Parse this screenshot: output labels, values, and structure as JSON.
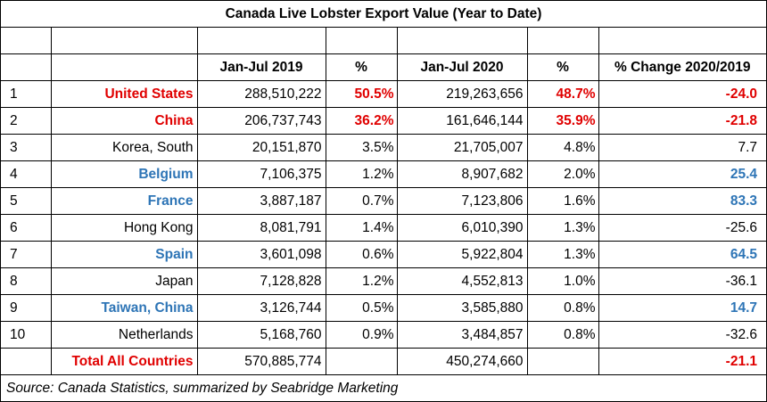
{
  "title": "Canada Live Lobster Export Value (Year to Date)",
  "headers": {
    "rank": "",
    "country": "",
    "val2019": "Jan-Jul 2019",
    "pct2019": "%",
    "val2020": "Jan-Jul 2020",
    "pct2020": "%",
    "change": "% Change 2020/2019"
  },
  "rows": [
    {
      "rank": "1",
      "country": "United States",
      "val2019": "288,510,222",
      "pct2019": "50.5%",
      "val2020": "219,263,656",
      "pct2020": "48.7%",
      "change": "-24.0",
      "color": "red"
    },
    {
      "rank": "2",
      "country": "China",
      "val2019": "206,737,743",
      "pct2019": "36.2%",
      "val2020": "161,646,144",
      "pct2020": "35.9%",
      "change": "-21.8",
      "color": "red"
    },
    {
      "rank": "3",
      "country": "Korea, South",
      "val2019": "20,151,870",
      "pct2019": "3.5%",
      "val2020": "21,705,007",
      "pct2020": "4.8%",
      "change": "7.7",
      "color": "none"
    },
    {
      "rank": "4",
      "country": "Belgium",
      "val2019": "7,106,375",
      "pct2019": "1.2%",
      "val2020": "8,907,682",
      "pct2020": "2.0%",
      "change": "25.4",
      "color": "blue"
    },
    {
      "rank": "5",
      "country": "France",
      "val2019": "3,887,187",
      "pct2019": "0.7%",
      "val2020": "7,123,806",
      "pct2020": "1.6%",
      "change": "83.3",
      "color": "blue"
    },
    {
      "rank": "6",
      "country": "Hong Kong",
      "val2019": "8,081,791",
      "pct2019": "1.4%",
      "val2020": "6,010,390",
      "pct2020": "1.3%",
      "change": "-25.6",
      "color": "none"
    },
    {
      "rank": "7",
      "country": "Spain",
      "val2019": "3,601,098",
      "pct2019": "0.6%",
      "val2020": "5,922,804",
      "pct2020": "1.3%",
      "change": "64.5",
      "color": "blue"
    },
    {
      "rank": "8",
      "country": "Japan",
      "val2019": "7,128,828",
      "pct2019": "1.2%",
      "val2020": "4,552,813",
      "pct2020": "1.0%",
      "change": "-36.1",
      "color": "none"
    },
    {
      "rank": "9",
      "country": "Taiwan, China",
      "val2019": "3,126,744",
      "pct2019": "0.5%",
      "val2020": "3,585,880",
      "pct2020": "0.8%",
      "change": "14.7",
      "color": "blue"
    },
    {
      "rank": "10",
      "country": "Netherlands",
      "val2019": "5,168,760",
      "pct2019": "0.9%",
      "val2020": "3,484,857",
      "pct2020": "0.8%",
      "change": "-32.6",
      "color": "none"
    }
  ],
  "total": {
    "label": "Total All Countries",
    "val2019": "570,885,774",
    "val2020": "450,274,660",
    "change": "-21.1"
  },
  "source": "Source: Canada Statistics, summarized by Seabridge Marketing",
  "colors": {
    "red": "#e00000",
    "blue": "#2e75b6"
  }
}
